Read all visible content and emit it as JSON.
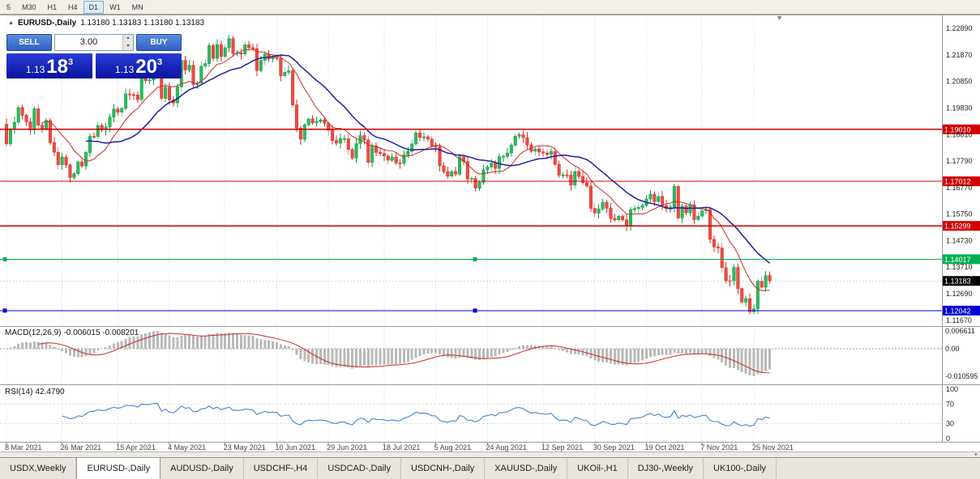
{
  "toolbar": {
    "timeframes": [
      "5",
      "M30",
      "H1",
      "H4",
      "D1",
      "W1",
      "MN"
    ],
    "active": "D1"
  },
  "chart": {
    "title": "EURUSD-,Daily",
    "ohlc_text": "1.13180 1.13183 1.13180 1.13183"
  },
  "trade_panel": {
    "sell_label": "SELL",
    "buy_label": "BUY",
    "lot_size": "3.00",
    "sell_price": {
      "small": "1.13",
      "big": "18",
      "sup": "3"
    },
    "buy_price": {
      "small": "1.13",
      "big": "20",
      "sup": "3"
    }
  },
  "price_axis": {
    "labels": [
      "1.22890",
      "1.21870",
      "1.20850",
      "1.19830",
      "1.18810",
      "1.17790",
      "1.16770",
      "1.15750",
      "1.14730",
      "1.13710",
      "1.12690",
      "1.11670"
    ]
  },
  "hlines": [
    {
      "price": 1.1901,
      "label": "1.19010",
      "color": "#d40000",
      "handles": []
    },
    {
      "price": 1.17012,
      "label": "1.17012",
      "color": "#d40000",
      "handles": []
    },
    {
      "price": 1.15299,
      "label": "1.15299",
      "color": "#d40000",
      "handles": []
    },
    {
      "price": 1.14017,
      "label": "1.14017",
      "color": "#00b050",
      "handles": [
        6,
        586
      ]
    },
    {
      "price": 1.12042,
      "label": "1.12042",
      "color": "#0000d8",
      "handles": [
        6,
        586
      ]
    }
  ],
  "current_price": {
    "value": 1.13183,
    "label": "1.13183"
  },
  "indicators": {
    "macd": {
      "label": "MACD(12,26,9)",
      "values": "-0.006015 -0.008201",
      "axis": [
        "0.006611",
        "0.00",
        "-0.010595"
      ]
    },
    "rsi": {
      "label": "RSI(14)",
      "value": "42.4790",
      "axis": [
        "100",
        "70",
        "30",
        "0"
      ],
      "levels": [
        70,
        30
      ]
    }
  },
  "chart_data": {
    "type": "candlestick",
    "symbol": "EURUSD-",
    "timeframe": "Daily",
    "first_open": 1.192,
    "axis_range": {
      "top": 1.2336,
      "bottom": 1.1154
    },
    "overlays": {
      "ma_fast_period": 10,
      "ma_slow_period": 21
    },
    "indicator_panels": [
      "MACD(12,26,9)",
      "RSI(14)"
    ],
    "closes": [
      1.1846,
      1.19,
      1.1928,
      1.1985,
      1.1955,
      1.193,
      1.1899,
      1.198,
      1.1917,
      1.1904,
      1.1935,
      1.185,
      1.1813,
      1.1765,
      1.1794,
      1.1764,
      1.1716,
      1.173,
      1.1776,
      1.176,
      1.1812,
      1.1874,
      1.1873,
      1.1916,
      1.1899,
      1.191,
      1.1948,
      1.1979,
      1.1967,
      1.1982,
      1.2037,
      1.2034,
      1.2033,
      1.2015,
      1.2097,
      1.2088,
      1.2091,
      1.2125,
      1.2122,
      1.202,
      1.2063,
      1.2014,
      1.2003,
      1.2064,
      1.2166,
      1.2129,
      1.2147,
      1.2073,
      1.2079,
      1.2144,
      1.2154,
      1.2223,
      1.2174,
      1.2227,
      1.2181,
      1.2215,
      1.225,
      1.2192,
      1.2195,
      1.219,
      1.2226,
      1.2215,
      1.2211,
      1.2127,
      1.2166,
      1.219,
      1.2172,
      1.2179,
      1.2174,
      1.2107,
      1.212,
      1.2126,
      1.1995,
      1.1906,
      1.1863,
      1.1918,
      1.1941,
      1.1926,
      1.1932,
      1.1937,
      1.1925,
      1.1898,
      1.1858,
      1.1848,
      1.1865,
      1.1865,
      1.1823,
      1.1791,
      1.1846,
      1.1877,
      1.1861,
      1.1774,
      1.1837,
      1.1812,
      1.1808,
      1.1799,
      1.1782,
      1.1794,
      1.1772,
      1.1771,
      1.1803,
      1.1816,
      1.1845,
      1.1887,
      1.187,
      1.1872,
      1.1864,
      1.1837,
      1.1834,
      1.1761,
      1.1738,
      1.1721,
      1.1739,
      1.1729,
      1.1795,
      1.1777,
      1.171,
      1.1712,
      1.1675,
      1.1697,
      1.1745,
      1.1756,
      1.1771,
      1.1751,
      1.1796,
      1.1797,
      1.181,
      1.184,
      1.1875,
      1.188,
      1.1869,
      1.1841,
      1.1817,
      1.1826,
      1.1814,
      1.181,
      1.1805,
      1.1816,
      1.1766,
      1.1725,
      1.1726,
      1.1725,
      1.1687,
      1.1739,
      1.172,
      1.1696,
      1.1683,
      1.1597,
      1.1579,
      1.1595,
      1.1621,
      1.1598,
      1.1558,
      1.1553,
      1.1567,
      1.1553,
      1.1529,
      1.1592,
      1.1596,
      1.1601,
      1.1609,
      1.1633,
      1.1652,
      1.1623,
      1.1643,
      1.1608,
      1.1596,
      1.1603,
      1.1682,
      1.156,
      1.1606,
      1.158,
      1.1611,
      1.1554,
      1.1567,
      1.1588,
      1.1592,
      1.1478,
      1.1449,
      1.1445,
      1.1369,
      1.1319,
      1.1318,
      1.137,
      1.1289,
      1.1237,
      1.125,
      1.12,
      1.1211,
      1.1317,
      1.1294,
      1.1339,
      1.13183
    ],
    "date_labels": [
      {
        "label": "8 Mar 2021",
        "i": 0
      },
      {
        "label": "26 Mar 2021",
        "i": 14
      },
      {
        "label": "15 Apr 2021",
        "i": 28
      },
      {
        "label": "4 May 2021",
        "i": 41
      },
      {
        "label": "23 May 2021",
        "i": 55
      },
      {
        "label": "10 Jun 2021",
        "i": 68
      },
      {
        "label": "29 Jun 2021",
        "i": 81
      },
      {
        "label": "18 Jul 2021",
        "i": 95
      },
      {
        "label": "5 Aug 2021",
        "i": 108
      },
      {
        "label": "24 Aug 2021",
        "i": 121
      },
      {
        "label": "12 Sep 2021",
        "i": 135
      },
      {
        "label": "30 Sep 2021",
        "i": 148
      },
      {
        "label": "19 Oct 2021",
        "i": 161
      },
      {
        "label": "7 Nov 2021",
        "i": 175
      },
      {
        "label": "25 Nov 2021",
        "i": 188
      }
    ]
  },
  "tabs": [
    "USDX,Weekly",
    "EURUSD-,Daily",
    "AUDUSD-,Daily",
    "USDCHF-,H4",
    "USDCAD-,Daily",
    "USDCNH-,Daily",
    "XAUUSD-,Daily",
    "UKOil-,H1",
    "DJ30-,Weekly",
    "UK100-,Daily"
  ],
  "active_tab": "EURUSD-,Daily"
}
